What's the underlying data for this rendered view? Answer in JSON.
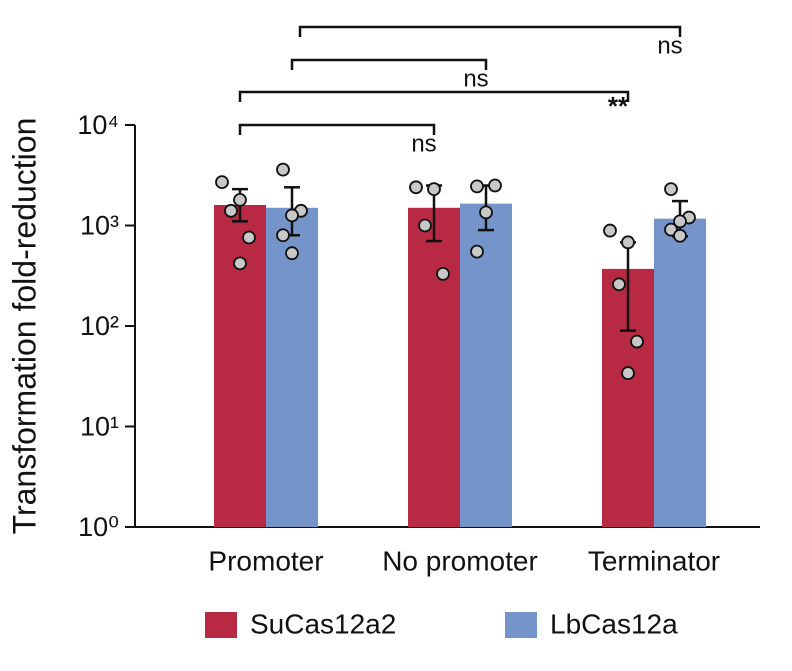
{
  "chart_data": {
    "type": "bar",
    "y_label": "Transformation fold-reduction",
    "categories": [
      "Promoter",
      "No promoter",
      "Terminator"
    ],
    "log_scale": true,
    "ylim": [
      1,
      10000
    ],
    "yticks": [
      {
        "value": 1,
        "label": "10⁰"
      },
      {
        "value": 10,
        "label": "10¹"
      },
      {
        "value": 100,
        "label": "10²"
      },
      {
        "value": 1000,
        "label": "10³"
      },
      {
        "value": 10000,
        "label": "10⁴"
      }
    ],
    "series": [
      {
        "name": "SuCas12a2",
        "color": "#b82a44",
        "values": [
          1600,
          1500,
          370
        ],
        "err_low": [
          1100,
          700,
          90
        ],
        "err_high": [
          2300,
          2500,
          680
        ],
        "points": [
          [
            2700,
            1800,
            1400,
            760,
            420
          ],
          [
            2400,
            2300,
            1000,
            330
          ],
          [
            890,
            680,
            260,
            70,
            34
          ]
        ]
      },
      {
        "name": "LbCas12a",
        "color": "#7594c9",
        "values": [
          1500,
          1650,
          1170
        ],
        "err_low": [
          800,
          900,
          780
        ],
        "err_high": [
          2400,
          2500,
          1750
        ],
        "points": [
          [
            3600,
            1400,
            1260,
            800,
            530
          ],
          [
            2450,
            2500,
            1350,
            550
          ],
          [
            2300,
            1200,
            1100,
            910,
            790
          ]
        ]
      }
    ],
    "annotations": [
      "ns",
      "**",
      "ns",
      "ns"
    ]
  }
}
